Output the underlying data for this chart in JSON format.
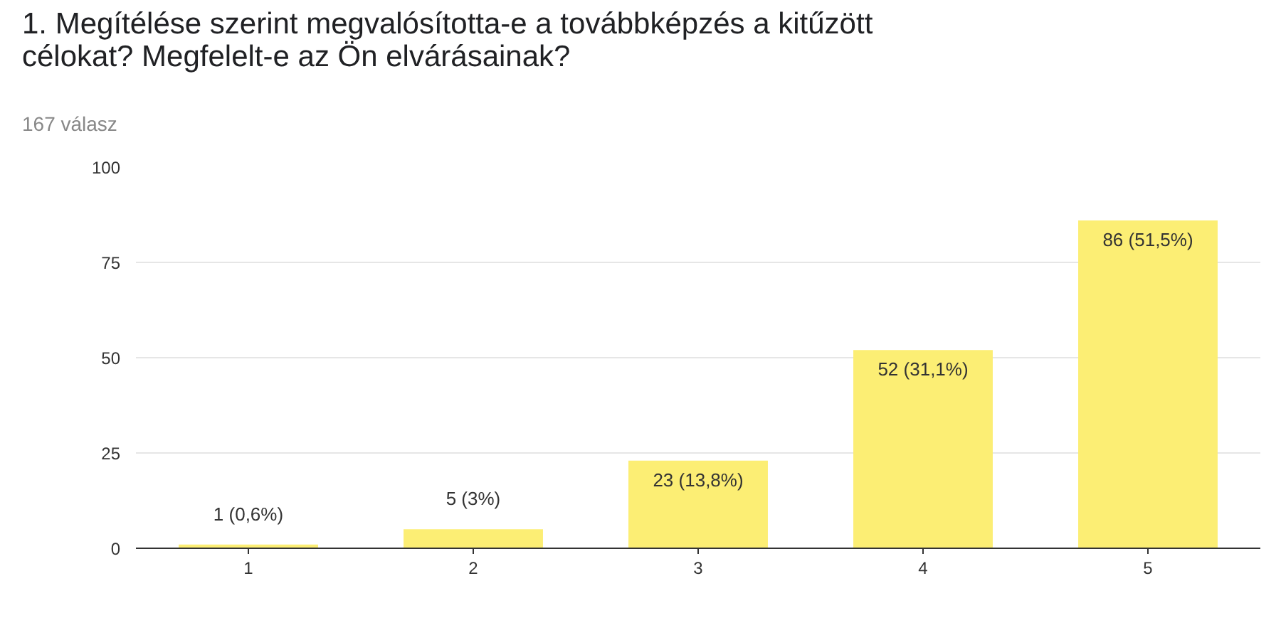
{
  "chart_data": {
    "type": "bar",
    "title": "1. Megítélése szerint megvalósította-e a továbbképzés a kitűzött célokat? Megfelelt-e az Ön elvárásainak?",
    "subtitle": "167 válasz",
    "categories": [
      "1",
      "2",
      "3",
      "4",
      "5"
    ],
    "values": [
      1,
      5,
      23,
      52,
      86
    ],
    "value_labels": [
      "1 (0,6%)",
      "5 (3%)",
      "23 (13,8%)",
      "52 (31,1%)",
      "86 (51,5%)"
    ],
    "color": "#fcee74",
    "ylim": [
      0,
      100
    ],
    "yticks": [
      0,
      25,
      50,
      75,
      100
    ],
    "grid": "y"
  }
}
